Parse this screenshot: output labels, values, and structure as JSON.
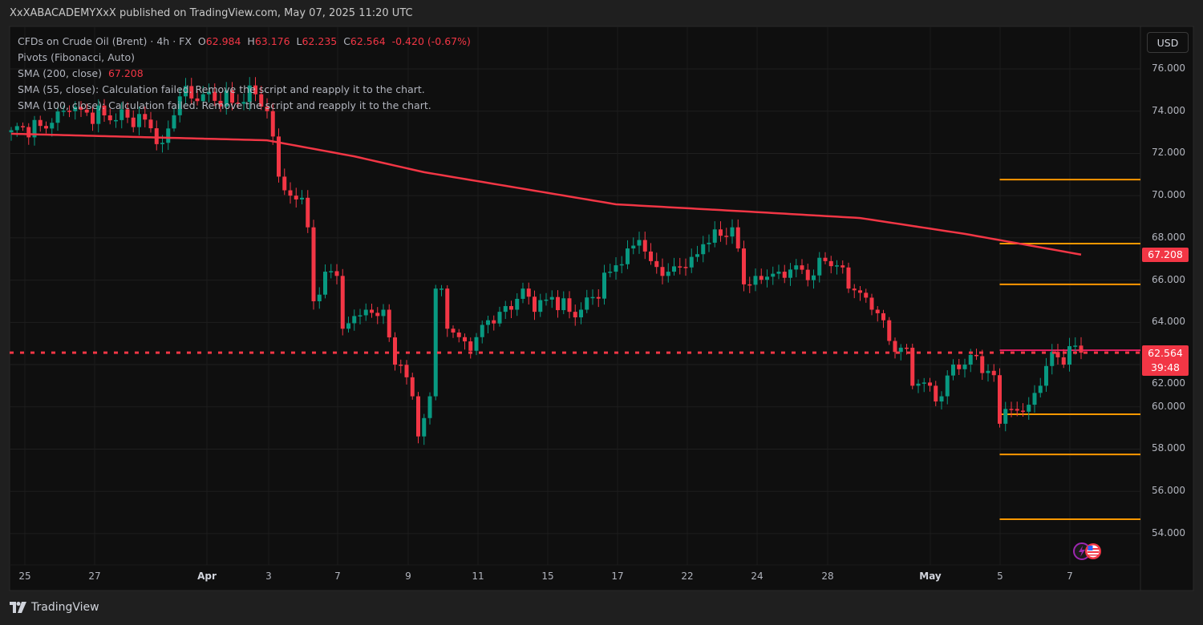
{
  "header": {
    "published": "XxXABACADEMYXxX published on TradingView.com, May 07, 2025 11:20 UTC"
  },
  "legend": {
    "symbol": "CFDs on Crude Oil (Brent) · 4h · FX",
    "open_label": "O",
    "open": "62.984",
    "high_label": "H",
    "high": "63.176",
    "low_label": "L",
    "low": "62.235",
    "close_label": "C",
    "close": "62.564",
    "change": "-0.420 (-0.67%)",
    "pivots": "Pivots (Fibonacci, Auto)",
    "sma200_label": "SMA (200, close)",
    "sma200_value": "67.208",
    "sma55": "SMA (55, close): Calculation failed. Remove the script and reapply it to the chart.",
    "sma100": "SMA (100, close): Calculation failed. Remove the script and reapply it to the chart."
  },
  "currency_button": "USD",
  "price_tags": {
    "sma": "67.208",
    "last": "62.564",
    "countdown": "39:48"
  },
  "footer": {
    "brand": "TradingView"
  },
  "colors": {
    "up": "#089981",
    "down": "#f23645",
    "sma": "#f23645",
    "pivot": "#ff9800",
    "pivot_p": "#e91e63"
  },
  "chart_data": {
    "type": "candlestick",
    "title": "CFDs on Crude Oil (Brent) · 4h · FX",
    "ylim": [
      53,
      77
    ],
    "y_ticks": [
      "54.000",
      "56.000",
      "58.000",
      "60.000",
      "62.000",
      "64.000",
      "66.000",
      "68.000",
      "70.000",
      "72.000",
      "74.000",
      "76.000"
    ],
    "x_ticks": [
      "25",
      "27",
      "Apr",
      "3",
      "7",
      "9",
      "11",
      "15",
      "17",
      "22",
      "24",
      "28",
      "May",
      "5",
      "7"
    ],
    "bar_count": 185,
    "close_keypoints": [
      [
        0,
        73.1
      ],
      [
        5,
        73.3
      ],
      [
        10,
        74.0
      ],
      [
        16,
        73.8
      ],
      [
        23,
        73.6
      ],
      [
        26,
        72.5
      ],
      [
        29,
        74.7
      ],
      [
        33,
        74.8
      ],
      [
        38,
        74.4
      ],
      [
        42,
        74.8
      ],
      [
        44,
        74.0
      ],
      [
        45,
        72.8
      ],
      [
        46,
        70.9
      ],
      [
        48,
        70.0
      ],
      [
        50,
        69.9
      ],
      [
        51,
        68.5
      ],
      [
        52,
        65.0
      ],
      [
        54,
        66.4
      ],
      [
        56,
        66.2
      ],
      [
        57,
        63.7
      ],
      [
        59,
        64.3
      ],
      [
        61,
        64.6
      ],
      [
        63,
        64.3
      ],
      [
        64,
        64.6
      ],
      [
        66,
        62.0
      ],
      [
        68,
        61.4
      ],
      [
        69,
        60.5
      ],
      [
        70,
        58.6
      ],
      [
        72,
        60.5
      ],
      [
        73,
        65.6
      ],
      [
        74,
        65.6
      ],
      [
        75,
        63.7
      ],
      [
        77,
        63.3
      ],
      [
        78,
        63.1
      ],
      [
        80,
        63.3
      ],
      [
        82,
        64.1
      ],
      [
        84,
        64.5
      ],
      [
        86,
        64.6
      ],
      [
        88,
        65.6
      ],
      [
        90,
        64.5
      ],
      [
        93,
        65.2
      ],
      [
        96,
        64.5
      ],
      [
        98,
        64.6
      ],
      [
        100,
        65.2
      ],
      [
        103,
        66.4
      ],
      [
        106,
        67.5
      ],
      [
        108,
        67.9
      ],
      [
        110,
        66.9
      ],
      [
        113,
        66.4
      ],
      [
        117,
        67.1
      ],
      [
        119,
        67.7
      ],
      [
        122,
        68.1
      ],
      [
        124,
        68.5
      ],
      [
        125,
        67.5
      ],
      [
        126,
        65.8
      ],
      [
        128,
        66.2
      ],
      [
        132,
        66.4
      ],
      [
        135,
        66.7
      ],
      [
        137,
        66.0
      ],
      [
        140,
        66.9
      ],
      [
        142,
        66.7
      ],
      [
        144,
        65.6
      ],
      [
        146,
        65.4
      ],
      [
        148,
        64.6
      ],
      [
        150,
        64.1
      ],
      [
        152,
        62.6
      ],
      [
        154,
        62.8
      ],
      [
        155,
        61.0
      ],
      [
        158,
        61.0
      ],
      [
        160,
        60.5
      ],
      [
        162,
        62.0
      ],
      [
        164,
        62.0
      ],
      [
        166,
        62.4
      ],
      [
        167,
        61.6
      ],
      [
        169,
        61.5
      ],
      [
        170,
        59.2
      ],
      [
        172,
        59.9
      ],
      [
        175,
        60.1
      ],
      [
        177,
        61.0
      ],
      [
        179,
        62.6
      ],
      [
        181,
        62.0
      ],
      [
        183,
        62.9
      ],
      [
        184,
        62.564
      ]
    ],
    "sma200_keypoints": [
      [
        0,
        72.93
      ],
      [
        44,
        72.62
      ],
      [
        59,
        71.86
      ],
      [
        71,
        71.11
      ],
      [
        104,
        69.59
      ],
      [
        129,
        69.21
      ],
      [
        146,
        68.94
      ],
      [
        164,
        68.19
      ],
      [
        184,
        67.208
      ]
    ],
    "pivot_start_bar": 170,
    "pivot_levels": [
      70.76,
      67.73,
      65.8,
      62.68,
      59.65,
      57.75,
      54.68
    ],
    "pivot_p_level": 62.68,
    "last_price": 62.564
  }
}
